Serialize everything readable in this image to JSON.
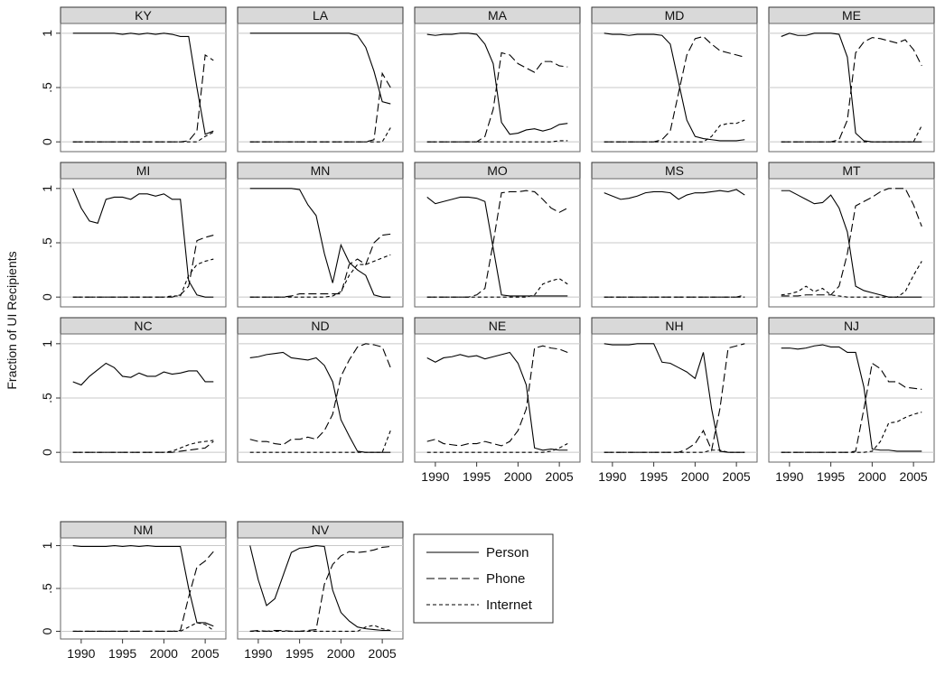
{
  "chart_data": {
    "type": "line",
    "y_label": "Fraction of UI Recipients",
    "x": [
      1989,
      1990,
      1991,
      1992,
      1993,
      1994,
      1995,
      1996,
      1997,
      1998,
      1999,
      2000,
      2001,
      2002,
      2003,
      2004,
      2005,
      2006
    ],
    "xlim": [
      1987.5,
      2007.5
    ],
    "xticks": [
      1990,
      1995,
      2000,
      2005
    ],
    "ylim": [
      -0.09,
      1.09
    ],
    "yticks": [
      0,
      {
        "value": 0.5,
        "label": ".5"
      },
      1
    ],
    "grid": true,
    "legend": "bottom-center",
    "series": [
      {
        "name": "Person",
        "color": "#000000",
        "dash": "solid"
      },
      {
        "name": "Phone",
        "color": "#000000",
        "dash": "long"
      },
      {
        "name": "Internet",
        "color": "#000000",
        "dash": "short"
      }
    ],
    "panels": [
      {
        "title": "KY",
        "values": [
          [
            1,
            1,
            1,
            1,
            1,
            1,
            0.99,
            1,
            0.99,
            1,
            0.99,
            1,
            0.99,
            0.97,
            0.97,
            0.5,
            0.07,
            0.1
          ],
          [
            0,
            0,
            0,
            0,
            0,
            0,
            0,
            0,
            0,
            0,
            0,
            0,
            0,
            0,
            0.01,
            0.1,
            0.8,
            0.75
          ],
          [
            0,
            0,
            0,
            0,
            0,
            0,
            0,
            0,
            0,
            0,
            0,
            0,
            0,
            0,
            0,
            0,
            0.05,
            0.09
          ]
        ]
      },
      {
        "title": "LA",
        "values": [
          [
            1,
            1,
            1,
            1,
            1,
            1,
            1,
            1,
            1,
            1,
            1,
            1,
            1,
            0.98,
            0.87,
            0.65,
            0.37,
            0.35
          ],
          [
            0,
            0,
            0,
            0,
            0,
            0,
            0,
            0,
            0,
            0,
            0,
            0,
            0,
            0,
            0,
            0.02,
            0.63,
            0.5
          ],
          [
            0,
            0,
            0,
            0,
            0,
            0,
            0,
            0,
            0,
            0,
            0,
            0,
            0,
            0,
            0,
            0,
            0,
            0.13
          ]
        ]
      },
      {
        "title": "MA",
        "values": [
          [
            0.99,
            0.98,
            0.99,
            0.99,
            1,
            1,
            0.99,
            0.9,
            0.72,
            0.18,
            0.07,
            0.08,
            0.11,
            0.12,
            0.1,
            0.12,
            0.16,
            0.17
          ],
          [
            0,
            0,
            0,
            0,
            0,
            0,
            0,
            0.05,
            0.3,
            0.82,
            0.8,
            0.72,
            0.68,
            0.64,
            0.74,
            0.74,
            0.7,
            0.69
          ],
          [
            0,
            0,
            0,
            0,
            0,
            0,
            0,
            0,
            0,
            0,
            0,
            0,
            0,
            0,
            0,
            0,
            0.01,
            0.01
          ]
        ]
      },
      {
        "title": "MD",
        "values": [
          [
            1,
            0.99,
            0.99,
            0.98,
            0.99,
            0.99,
            0.99,
            0.98,
            0.9,
            0.55,
            0.2,
            0.05,
            0.03,
            0.02,
            0.01,
            0.01,
            0.01,
            0.02
          ],
          [
            0,
            0,
            0,
            0,
            0,
            0,
            0,
            0.02,
            0.1,
            0.45,
            0.8,
            0.95,
            0.97,
            0.9,
            0.84,
            0.82,
            0.8,
            0.78
          ],
          [
            0,
            0,
            0,
            0,
            0,
            0,
            0,
            0,
            0,
            0,
            0,
            0,
            0,
            0.05,
            0.15,
            0.17,
            0.17,
            0.2
          ]
        ]
      },
      {
        "title": "ME",
        "values": [
          [
            0.97,
            1,
            0.98,
            0.98,
            1,
            1,
            1,
            0.99,
            0.78,
            0.08,
            0.01,
            0,
            0,
            0,
            0,
            0,
            0,
            0
          ],
          [
            0,
            0,
            0,
            0,
            0,
            0,
            0,
            0.02,
            0.2,
            0.82,
            0.92,
            0.96,
            0.95,
            0.93,
            0.91,
            0.94,
            0.85,
            0.7
          ],
          [
            0,
            0,
            0,
            0,
            0,
            0,
            0,
            0,
            0,
            0,
            0,
            0,
            0,
            0,
            0,
            0,
            0,
            0.15
          ]
        ]
      },
      {
        "title": "MI",
        "values": [
          [
            1,
            0.82,
            0.7,
            0.68,
            0.9,
            0.92,
            0.92,
            0.9,
            0.95,
            0.95,
            0.93,
            0.95,
            0.9,
            0.9,
            0.15,
            0.02,
            0,
            0
          ],
          [
            0,
            0,
            0,
            0,
            0,
            0,
            0,
            0,
            0,
            0,
            0,
            0,
            0,
            0.02,
            0.1,
            0.52,
            0.55,
            0.57
          ],
          [
            0,
            0,
            0,
            0,
            0,
            0,
            0,
            0,
            0,
            0,
            0,
            0,
            0.01,
            0.01,
            0.2,
            0.3,
            0.33,
            0.35
          ]
        ]
      },
      {
        "title": "MN",
        "values": [
          [
            1,
            1,
            1,
            1,
            1,
            1,
            0.99,
            0.85,
            0.75,
            0.4,
            0.13,
            0.48,
            0.32,
            0.25,
            0.2,
            0.02,
            0,
            0
          ],
          [
            0,
            0,
            0,
            0,
            0,
            0.01,
            0.03,
            0.03,
            0.03,
            0.03,
            0.03,
            0.03,
            0.3,
            0.35,
            0.3,
            0.5,
            0.57,
            0.58
          ],
          [
            0,
            0,
            0,
            0,
            0,
            0,
            0,
            0,
            0,
            0,
            0.01,
            0.05,
            0.2,
            0.3,
            0.3,
            0.33,
            0.36,
            0.39
          ]
        ]
      },
      {
        "title": "MO",
        "values": [
          [
            0.92,
            0.86,
            0.88,
            0.9,
            0.92,
            0.92,
            0.91,
            0.88,
            0.45,
            0.02,
            0.01,
            0.01,
            0.01,
            0.01,
            0.01,
            0.01,
            0.01,
            0.01
          ],
          [
            0,
            0,
            0,
            0,
            0,
            0,
            0.02,
            0.08,
            0.5,
            0.96,
            0.97,
            0.97,
            0.98,
            0.97,
            0.9,
            0.82,
            0.78,
            0.82
          ],
          [
            0,
            0,
            0,
            0,
            0,
            0,
            0,
            0,
            0,
            0,
            0,
            0,
            0,
            0.02,
            0.12,
            0.15,
            0.17,
            0.12
          ]
        ]
      },
      {
        "title": "MS",
        "values": [
          [
            0.96,
            0.93,
            0.9,
            0.91,
            0.93,
            0.96,
            0.97,
            0.97,
            0.96,
            0.9,
            0.94,
            0.96,
            0.96,
            0.97,
            0.98,
            0.97,
            0.99,
            0.94
          ],
          [
            0,
            0,
            0,
            0,
            0,
            0,
            0,
            0,
            0,
            0,
            0,
            0,
            0,
            0,
            0,
            0,
            0,
            0.02
          ],
          [
            0,
            0,
            0,
            0,
            0,
            0,
            0,
            0,
            0,
            0,
            0,
            0,
            0,
            0,
            0,
            0,
            0,
            0
          ]
        ]
      },
      {
        "title": "MT",
        "values": [
          [
            0.98,
            0.98,
            0.94,
            0.9,
            0.86,
            0.87,
            0.94,
            0.82,
            0.6,
            0.1,
            0.06,
            0.04,
            0.02,
            0,
            0,
            0,
            0,
            0
          ],
          [
            0.01,
            0.01,
            0.01,
            0.02,
            0.02,
            0.02,
            0.02,
            0.1,
            0.4,
            0.84,
            0.88,
            0.92,
            0.97,
            1,
            1,
            1,
            0.85,
            0.65
          ],
          [
            0.02,
            0.03,
            0.05,
            0.1,
            0.05,
            0.08,
            0.02,
            0.01,
            0,
            0,
            0,
            0,
            0,
            0,
            0,
            0.05,
            0.2,
            0.33
          ]
        ]
      },
      {
        "title": "NC",
        "values": [
          [
            0.65,
            0.62,
            0.7,
            0.76,
            0.82,
            0.78,
            0.7,
            0.69,
            0.73,
            0.7,
            0.7,
            0.74,
            0.72,
            0.73,
            0.75,
            0.75,
            0.65,
            0.65
          ],
          [
            0,
            0,
            0,
            0,
            0,
            0,
            0,
            0,
            0,
            0,
            0,
            0,
            0,
            0.01,
            0.02,
            0.03,
            0.04,
            0.1
          ],
          [
            0,
            0,
            0,
            0,
            0,
            0,
            0,
            0,
            0,
            0,
            0,
            0,
            0.01,
            0.04,
            0.07,
            0.09,
            0.1,
            0.11
          ]
        ]
      },
      {
        "title": "ND",
        "values": [
          [
            0.87,
            0.88,
            0.9,
            0.91,
            0.92,
            0.87,
            0.86,
            0.85,
            0.87,
            0.8,
            0.65,
            0.3,
            0.15,
            0.01,
            0,
            0,
            0,
            0
          ],
          [
            0.12,
            0.1,
            0.1,
            0.08,
            0.07,
            0.12,
            0.12,
            0.14,
            0.12,
            0.2,
            0.35,
            0.7,
            0.85,
            0.97,
            1,
            0.99,
            0.97,
            0.78
          ],
          [
            0,
            0,
            0,
            0,
            0,
            0,
            0,
            0,
            0,
            0,
            0,
            0,
            0,
            0,
            0,
            0,
            0,
            0.2
          ]
        ]
      },
      {
        "title": "NE",
        "values": [
          [
            0.87,
            0.83,
            0.87,
            0.88,
            0.9,
            0.88,
            0.89,
            0.86,
            0.88,
            0.9,
            0.92,
            0.82,
            0.62,
            0.04,
            0.02,
            0.03,
            0.02,
            0.02
          ],
          [
            0.1,
            0.12,
            0.08,
            0.07,
            0.06,
            0.08,
            0.08,
            0.1,
            0.08,
            0.06,
            0.1,
            0.2,
            0.4,
            0.96,
            0.98,
            0.96,
            0.95,
            0.92
          ],
          [
            0,
            0,
            0,
            0,
            0,
            0,
            0,
            0,
            0,
            0,
            0,
            0,
            0,
            0,
            0,
            0.01,
            0.04,
            0.08
          ]
        ]
      },
      {
        "title": "NH",
        "values": [
          [
            1,
            0.99,
            0.99,
            0.99,
            1,
            1,
            1,
            0.83,
            0.82,
            0.78,
            0.74,
            0.68,
            0.92,
            0.4,
            0.01,
            0,
            0,
            0
          ],
          [
            0,
            0,
            0,
            0,
            0,
            0,
            0,
            0,
            0,
            0,
            0.03,
            0.08,
            0.2,
            0.02,
            0.4,
            0.96,
            0.98,
            1
          ],
          [
            0,
            0,
            0,
            0,
            0,
            0,
            0,
            0,
            0,
            0,
            0,
            0,
            0,
            0.02,
            0.02,
            0,
            0,
            0
          ]
        ]
      },
      {
        "title": "NJ",
        "values": [
          [
            0.96,
            0.96,
            0.95,
            0.96,
            0.98,
            0.99,
            0.97,
            0.97,
            0.92,
            0.92,
            0.6,
            0.03,
            0.02,
            0.02,
            0.01,
            0.01,
            0.01,
            0.01
          ],
          [
            0,
            0,
            0,
            0,
            0,
            0,
            0,
            0,
            0,
            0.01,
            0.4,
            0.82,
            0.77,
            0.65,
            0.65,
            0.6,
            0.59,
            0.58
          ],
          [
            0,
            0,
            0,
            0,
            0,
            0,
            0,
            0,
            0,
            0,
            0,
            0.01,
            0.1,
            0.27,
            0.28,
            0.32,
            0.35,
            0.37
          ]
        ]
      },
      {
        "title": "NM",
        "values": [
          [
            1,
            0.99,
            0.99,
            0.99,
            0.99,
            1,
            0.99,
            1,
            0.99,
            1,
            0.99,
            0.99,
            0.99,
            0.99,
            0.5,
            0.1,
            0.1,
            0.06
          ],
          [
            0,
            0,
            0,
            0,
            0,
            0,
            0,
            0,
            0,
            0,
            0,
            0,
            0,
            0.01,
            0.4,
            0.75,
            0.82,
            0.93
          ],
          [
            0,
            0,
            0,
            0,
            0,
            0,
            0,
            0,
            0,
            0,
            0,
            0,
            0,
            0,
            0.05,
            0.1,
            0.08,
            0.01
          ]
        ]
      },
      {
        "title": "NV",
        "values": [
          [
            1,
            0.6,
            0.3,
            0.38,
            0.65,
            0.92,
            0.97,
            0.98,
            1,
            0.99,
            0.48,
            0.22,
            0.12,
            0.05,
            0.03,
            0.02,
            0.01,
            0.01
          ],
          [
            0,
            0.01,
            0,
            0.01,
            0.01,
            0,
            0,
            0.01,
            0.02,
            0.55,
            0.78,
            0.88,
            0.93,
            0.92,
            0.93,
            0.95,
            0.98,
            0.99
          ],
          [
            0,
            0,
            0,
            0,
            0,
            0,
            0,
            0,
            0,
            0,
            0,
            0,
            0,
            0,
            0.05,
            0.07,
            0.03,
            0.01
          ]
        ]
      }
    ]
  }
}
